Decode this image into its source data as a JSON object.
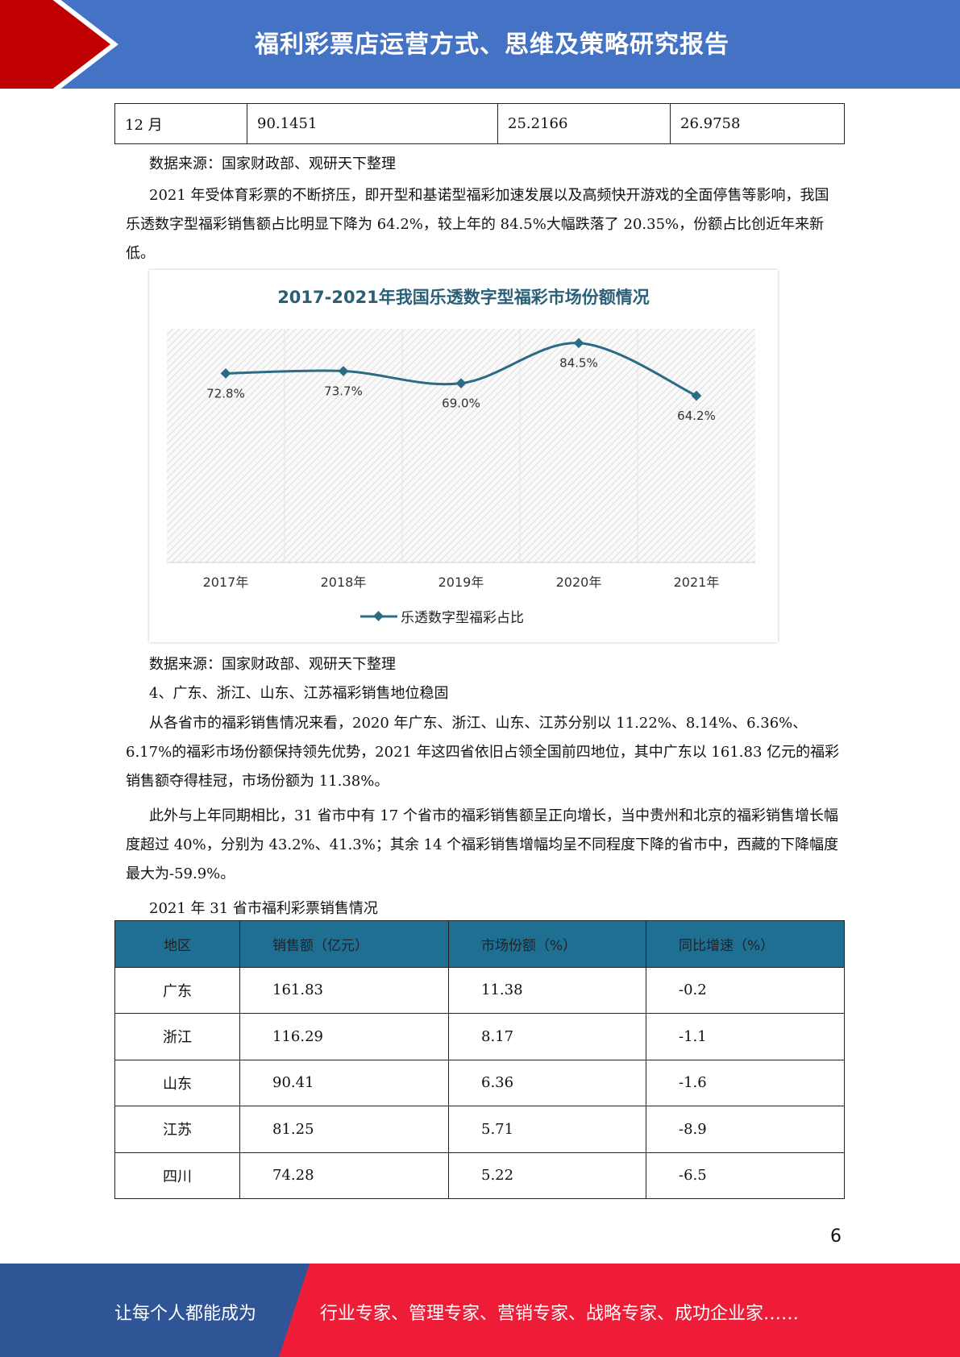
{
  "header": {
    "title": "福利彩票店运营方式、思维及策略研究报告",
    "color": "#4472c4",
    "accent": "#c00000"
  },
  "table_top": {
    "row": [
      "12 月",
      "90.1451",
      "25.2166",
      "26.9758"
    ]
  },
  "source1": "数据来源：国家财政部、观研天下整理",
  "para1": "2021 年受体育彩票的不断挤压，即开型和基诺型福彩加速发展以及高频快开游戏的全面停售等影响，我国乐透数字型福彩销售额占比明显下降为 64.2%，较上年的 84.5%大幅跌落了 20.35%，份额占比创近年来新低。",
  "chart_data": {
    "type": "line",
    "title": "2017-2021年我国乐透数字型福彩市场份额情况",
    "categories": [
      "2017年",
      "2018年",
      "2019年",
      "2020年",
      "2021年"
    ],
    "series": [
      {
        "name": "乐透数字型福彩占比",
        "values": [
          72.8,
          73.7,
          69.0,
          84.5,
          64.2
        ],
        "color": "#2a6b86"
      }
    ],
    "data_labels": [
      "72.8%",
      "73.7%",
      "69.0%",
      "84.5%",
      "64.2%"
    ],
    "ylim": [
      0,
      90
    ],
    "xlabel": "",
    "ylabel": "",
    "legend": "bottom"
  },
  "source2": "数据来源：国家财政部、观研天下整理",
  "heading4": "4、广东、浙江、山东、江苏福彩销售地位稳固",
  "para2": "从各省市的福彩销售情况来看，2020 年广东、浙江、山东、江苏分别以 11.22%、8.14%、6.36%、6.17%的福彩市场份额保持领先优势，2021 年这四省依旧占领全国前四地位，其中广东以 161.83 亿元的福彩销售额夺得桂冠，市场份额为 11.38%。",
  "para3": "此外与上年同期相比，31 省市中有 17 个省市的福彩销售额呈正向增长，当中贵州和北京的福彩销售增长幅度超过 40%，分别为 43.2%、41.3%；其余 14 个福彩销售增幅均呈不同程度下降的省市中，西藏的下降幅度最大为-59.9%。",
  "table_caption": "2021 年 31 省市福利彩票销售情况",
  "table2": {
    "headers": [
      "地区",
      "销售额（亿元）",
      "市场份额（%）",
      "同比增速（%）"
    ],
    "rows": [
      [
        "广东",
        "161.83",
        "11.38",
        "-0.2"
      ],
      [
        "浙江",
        "116.29",
        "8.17",
        "-1.1"
      ],
      [
        "山东",
        "90.41",
        "6.36",
        "-1.6"
      ],
      [
        "江苏",
        "81.25",
        "5.71",
        "-8.9"
      ],
      [
        "四川",
        "74.28",
        "5.22",
        "-6.5"
      ]
    ]
  },
  "page_number": "6",
  "footer": {
    "left": "让每个人都能成为",
    "right": "行业专家、管理专家、营销专家、战略专家、成功企业家……"
  }
}
